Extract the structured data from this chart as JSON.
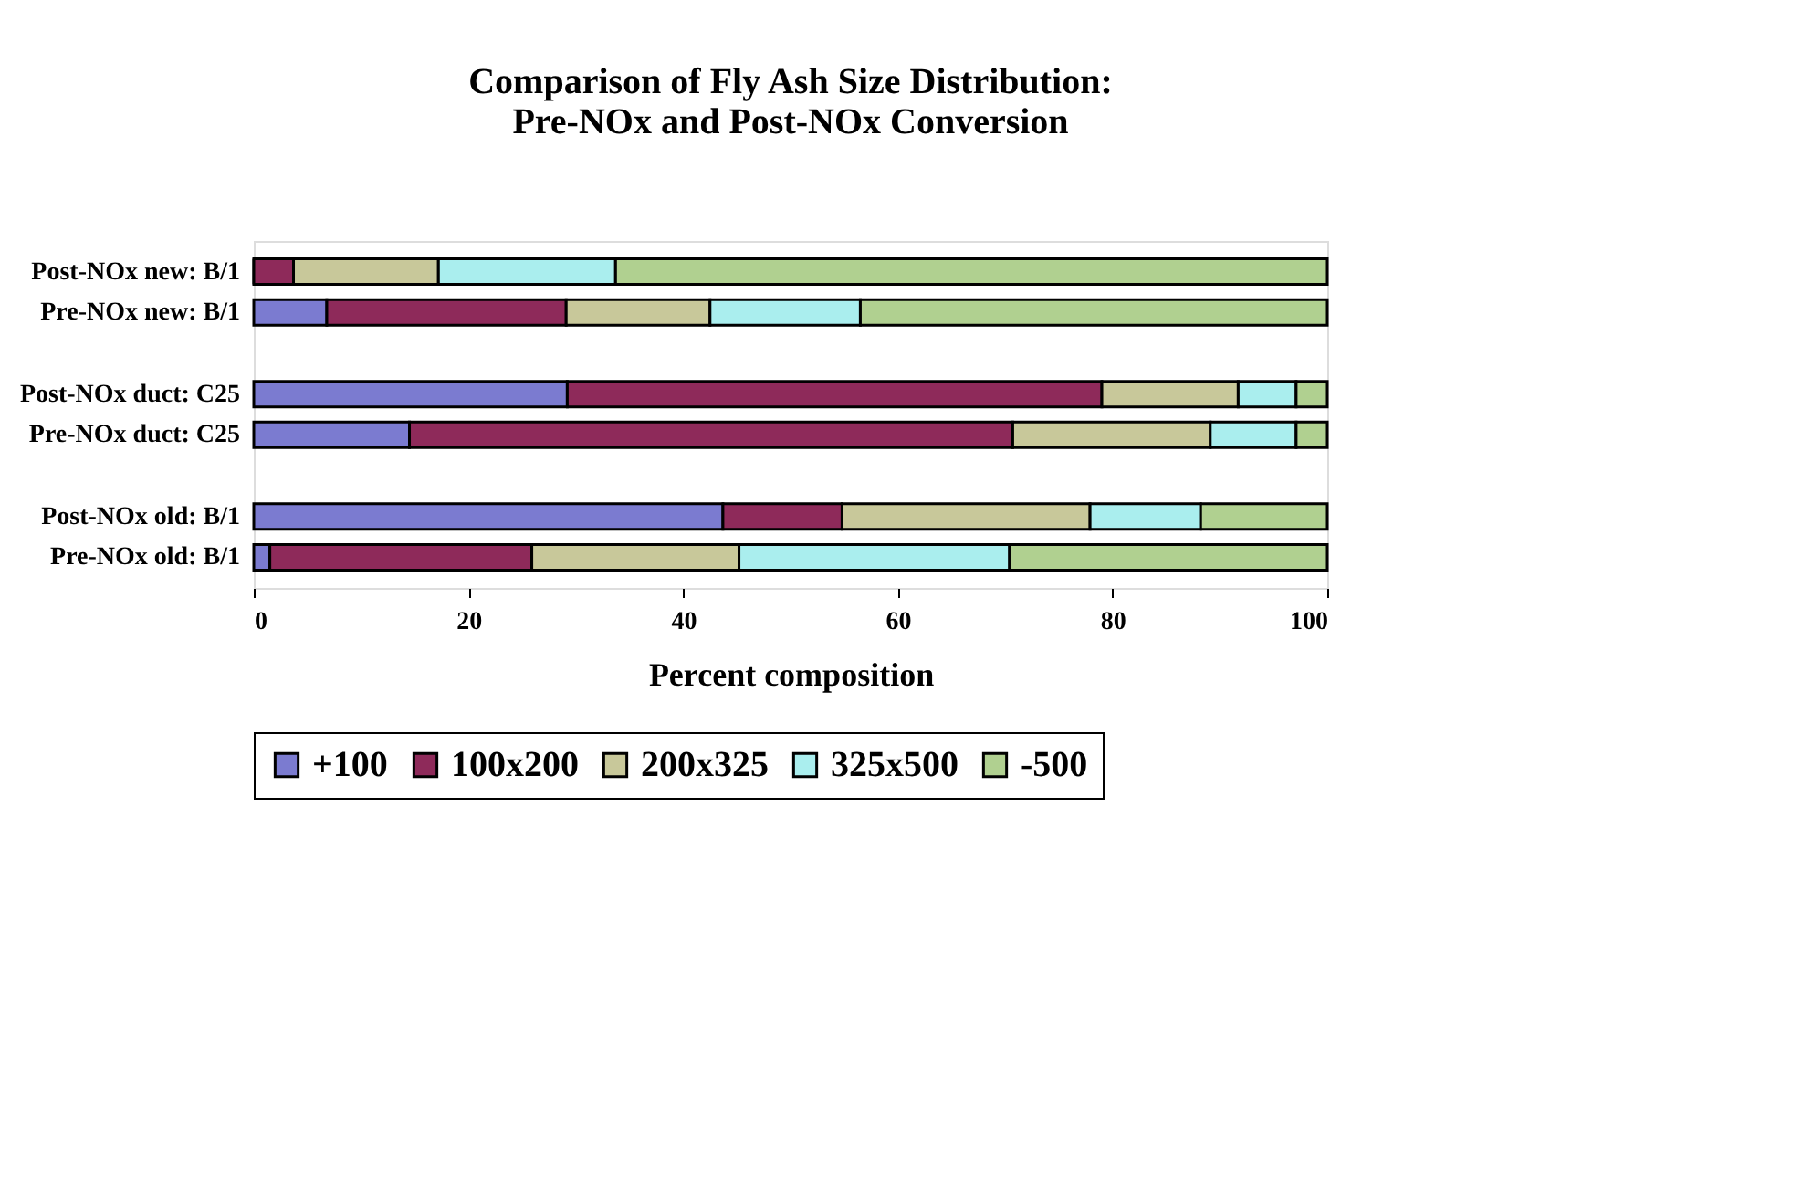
{
  "chart_data": {
    "type": "bar",
    "orientation": "horizontal",
    "stacked": true,
    "title": "Comparison of Fly Ash Size Distribution:\nPre-NOx and Post-NOx Conversion",
    "xlabel": "Percent composition",
    "categories": [
      "Post-NOx new: B/1",
      "Pre-NOx new: B/1",
      null,
      "Post-NOx duct: C25",
      "Pre-NOx duct: C25",
      null,
      "Post-NOx old: B/1",
      "Pre-NOx old: B/1"
    ],
    "series": [
      {
        "name": "+100",
        "color": "#7b7bd0",
        "values": [
          0,
          6.8,
          null,
          29.2,
          14.5,
          null,
          43.7,
          1.5
        ]
      },
      {
        "name": "100x200",
        "color": "#8e2a5a",
        "values": [
          3.7,
          22.3,
          null,
          49.8,
          56.2,
          null,
          11.1,
          24.4
        ]
      },
      {
        "name": "200x325",
        "color": "#c8c89a",
        "values": [
          13.5,
          13.4,
          null,
          12.7,
          18.4,
          null,
          23.1,
          19.3
        ]
      },
      {
        "name": "325x500",
        "color": "#aaeeee",
        "values": [
          16.5,
          14.0,
          null,
          5.4,
          8.0,
          null,
          10.3,
          25.2
        ]
      },
      {
        "name": "-500",
        "color": "#b0d090",
        "values": [
          66.3,
          43.5,
          null,
          2.9,
          2.9,
          null,
          11.8,
          29.6
        ]
      }
    ],
    "xlim": [
      0,
      100
    ],
    "xticks": [
      0,
      20,
      40,
      60,
      80,
      100
    ],
    "grid": false,
    "legend": "bottom"
  }
}
